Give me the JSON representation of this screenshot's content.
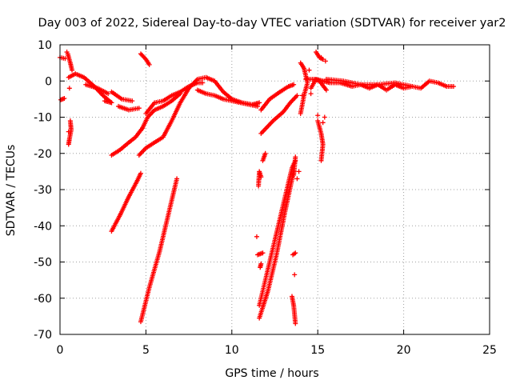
{
  "chart_data": {
    "type": "scatter",
    "title": "Day 003 of 2022, Sidereal Day-to-day VTEC variation (SDTVAR) for receiver yar2",
    "xlabel": "GPS time / hours",
    "ylabel": "SDTVAR / TECUs",
    "xlim": [
      0,
      25
    ],
    "ylim": [
      -70,
      10
    ],
    "x_ticks": [
      0,
      5,
      10,
      15,
      20,
      25
    ],
    "y_ticks": [
      10,
      0,
      -10,
      -20,
      -30,
      -40,
      -50,
      -60,
      -70
    ],
    "grid": true,
    "marker": "+",
    "colors": {
      "series": "#ff0000",
      "grid": "#a0a0a0",
      "axis": "#000000"
    },
    "series": [
      {
        "name": "SDTVAR",
        "segments": [
          [
            [
              0.0,
              6.5
            ],
            [
              0.3,
              6.2
            ]
          ],
          [
            [
              0.05,
              -5.2
            ],
            [
              0.25,
              -4.8
            ]
          ],
          [
            [
              0.45,
              7.5
            ],
            [
              0.6,
              5.0
            ],
            [
              0.7,
              3.0
            ]
          ],
          [
            [
              0.5,
              1.0
            ],
            [
              0.9,
              2.0
            ],
            [
              1.4,
              1.0
            ],
            [
              2.0,
              -1.5
            ],
            [
              2.5,
              -4.0
            ],
            [
              3.0,
              -6.0
            ]
          ],
          [
            [
              0.6,
              -11.0
            ],
            [
              0.65,
              -13.5
            ],
            [
              0.55,
              -16.0
            ],
            [
              0.5,
              -17.5
            ]
          ],
          [
            [
              3.0,
              -3.0
            ],
            [
              3.6,
              -5.0
            ],
            [
              4.2,
              -5.5
            ]
          ],
          [
            [
              3.4,
              -7.0
            ],
            [
              4.0,
              -8.0
            ],
            [
              4.6,
              -7.5
            ]
          ],
          [
            [
              4.7,
              7.5
            ],
            [
              5.0,
              6.0
            ],
            [
              5.2,
              4.5
            ]
          ],
          [
            [
              3.0,
              -20.5
            ],
            [
              3.5,
              -19.0
            ],
            [
              4.0,
              -17.0
            ],
            [
              4.4,
              -15.5
            ],
            [
              4.8,
              -13.0
            ]
          ],
          [
            [
              4.8,
              -13.0
            ],
            [
              5.1,
              -10.0
            ],
            [
              5.5,
              -8.0
            ],
            [
              6.0,
              -7.0
            ],
            [
              6.5,
              -5.5
            ],
            [
              7.0,
              -3.5
            ]
          ],
          [
            [
              4.6,
              -20.5
            ],
            [
              5.0,
              -18.5
            ],
            [
              5.5,
              -17.0
            ],
            [
              6.0,
              -15.5
            ],
            [
              6.5,
              -11.0
            ],
            [
              7.0,
              -6.0
            ],
            [
              7.5,
              -2.0
            ],
            [
              8.0,
              0.5
            ],
            [
              8.5,
              1.0
            ],
            [
              9.0,
              0.0
            ],
            [
              9.5,
              -3.0
            ],
            [
              10.0,
              -5.0
            ],
            [
              10.6,
              -6.0
            ],
            [
              11.2,
              -6.5
            ],
            [
              11.6,
              -6.0
            ]
          ],
          [
            [
              5.0,
              -9.0
            ],
            [
              5.5,
              -6.0
            ],
            [
              6.0,
              -5.5
            ],
            [
              6.5,
              -4.0
            ],
            [
              7.0,
              -3.0
            ],
            [
              7.5,
              -1.5
            ],
            [
              8.0,
              -0.5
            ],
            [
              8.3,
              -0.5
            ]
          ],
          [
            [
              1.5,
              -1.0
            ],
            [
              2.2,
              -2.0
            ],
            [
              2.8,
              -3.5
            ]
          ],
          [
            [
              2.6,
              -5.5
            ],
            [
              3.0,
              -6.0
            ]
          ],
          [
            [
              8.0,
              -2.5
            ],
            [
              8.5,
              -3.5
            ],
            [
              9.0,
              -4.0
            ],
            [
              9.5,
              -5.0
            ],
            [
              10.5,
              -6.0
            ],
            [
              11.5,
              -7.0
            ]
          ],
          [
            [
              3.0,
              -41.5
            ],
            [
              3.5,
              -37.0
            ],
            [
              4.0,
              -32.0
            ],
            [
              4.5,
              -27.5
            ],
            [
              4.7,
              -25.5
            ]
          ],
          [
            [
              4.7,
              -66.5
            ],
            [
              5.2,
              -57.0
            ],
            [
              5.8,
              -47.0
            ],
            [
              6.3,
              -37.0
            ],
            [
              6.8,
              -27.0
            ]
          ],
          [
            [
              11.5,
              -48.0
            ],
            [
              11.8,
              -47.5
            ]
          ],
          [
            [
              11.6,
              -62.0
            ],
            [
              12.0,
              -54.0
            ],
            [
              12.5,
              -44.0
            ],
            [
              13.0,
              -34.0
            ],
            [
              13.5,
              -24.0
            ],
            [
              13.7,
              -22.0
            ]
          ],
          [
            [
              11.6,
              -65.5
            ],
            [
              12.1,
              -58.0
            ],
            [
              12.6,
              -48.0
            ],
            [
              13.1,
              -36.0
            ],
            [
              13.6,
              -25.0
            ]
          ],
          [
            [
              11.55,
              -29.0
            ],
            [
              11.6,
              -25.0
            ],
            [
              11.7,
              -26.5
            ]
          ],
          [
            [
              11.8,
              -22.0
            ],
            [
              11.95,
              -20.0
            ]
          ],
          [
            [
              11.65,
              -51.5
            ],
            [
              11.7,
              -50.5
            ]
          ],
          [
            [
              11.7,
              -8.0
            ],
            [
              12.2,
              -5.0
            ],
            [
              12.8,
              -3.0
            ],
            [
              13.3,
              -1.5
            ],
            [
              13.6,
              -1.0
            ]
          ],
          [
            [
              11.7,
              -14.5
            ],
            [
              12.4,
              -11.0
            ],
            [
              13.0,
              -8.5
            ],
            [
              13.4,
              -6.0
            ],
            [
              13.8,
              -4.0
            ]
          ],
          [
            [
              13.5,
              -59.5
            ],
            [
              13.6,
              -62.0
            ],
            [
              13.7,
              -67.0
            ]
          ],
          [
            [
              13.55,
              -48.0
            ],
            [
              13.7,
              -47.5
            ]
          ],
          [
            [
              13.6,
              -26.0
            ],
            [
              13.7,
              -21.0
            ]
          ],
          [
            [
              14.0,
              5.0
            ],
            [
              14.2,
              3.5
            ],
            [
              14.4,
              -0.5
            ],
            [
              14.2,
              -4.0
            ],
            [
              14.0,
              -9.0
            ]
          ],
          [
            [
              14.3,
              0.5
            ],
            [
              14.8,
              0.5
            ],
            [
              15.1,
              0.0
            ],
            [
              15.5,
              -2.5
            ]
          ],
          [
            [
              14.9,
              8.0
            ],
            [
              15.1,
              6.5
            ],
            [
              15.3,
              6.0
            ]
          ],
          [
            [
              15.0,
              -11.0
            ],
            [
              15.2,
              -14.5
            ],
            [
              15.3,
              -17.5
            ],
            [
              15.2,
              -22.0
            ]
          ],
          [
            [
              14.6,
              -2.0
            ],
            [
              14.9,
              0.5
            ],
            [
              15.3,
              0.0
            ],
            [
              15.7,
              -0.5
            ],
            [
              16.3,
              -0.5
            ],
            [
              17.0,
              -1.5
            ],
            [
              17.5,
              -1.0
            ],
            [
              18.0,
              -2.0
            ],
            [
              18.5,
              -1.0
            ],
            [
              19.0,
              -2.5
            ],
            [
              19.5,
              -1.0
            ],
            [
              20.0,
              -2.0
            ],
            [
              20.5,
              -1.5
            ],
            [
              21.0,
              -2.0
            ],
            [
              21.5,
              0.0
            ],
            [
              22.0,
              -0.5
            ],
            [
              22.5,
              -1.5
            ],
            [
              22.9,
              -1.5
            ]
          ],
          [
            [
              15.5,
              0.5
            ],
            [
              16.5,
              0.0
            ],
            [
              17.5,
              -1.0
            ],
            [
              18.5,
              -1.0
            ],
            [
              19.5,
              -0.5
            ],
            [
              20.5,
              -1.5
            ]
          ]
        ],
        "points": [
          [
            0.4,
            8.0
          ],
          [
            0.55,
            -2.0
          ],
          [
            0.5,
            -14.0
          ],
          [
            13.8,
            -27.0
          ],
          [
            13.9,
            -25.0
          ],
          [
            14.1,
            -4.0
          ],
          [
            14.5,
            3.0
          ],
          [
            15.2,
            6.5
          ],
          [
            15.3,
            -11.5
          ],
          [
            15.4,
            -10.0
          ],
          [
            13.65,
            -53.5
          ],
          [
            11.45,
            -43.0
          ],
          [
            14.6,
            -3.5
          ],
          [
            15.0,
            -9.5
          ],
          [
            15.45,
            5.5
          ]
        ]
      }
    ]
  }
}
